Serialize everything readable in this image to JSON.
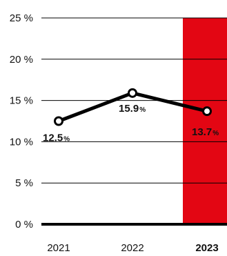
{
  "chart_data": {
    "type": "line",
    "categories": [
      "2021",
      "2022",
      "2023"
    ],
    "highlight_category": "2023",
    "series": [
      {
        "values": [
          12.5,
          15.9,
          13.7
        ],
        "labels": [
          {
            "num": "12.5",
            "unit": "%"
          },
          {
            "num": "15.9",
            "unit": "%"
          },
          {
            "num": "13.7",
            "unit": "%"
          }
        ]
      }
    ],
    "ylim": [
      0,
      25
    ],
    "yticks": [
      {
        "value": 0,
        "label": "0 %"
      },
      {
        "value": 5,
        "label": "5 %"
      },
      {
        "value": 10,
        "label": "10 %"
      },
      {
        "value": 15,
        "label": "15 %"
      },
      {
        "value": 20,
        "label": "20 %"
      },
      {
        "value": 25,
        "label": "25 %"
      }
    ],
    "grid": true,
    "colors": {
      "line": "#000000",
      "highlight": "#e30613",
      "text": "#111111"
    }
  }
}
